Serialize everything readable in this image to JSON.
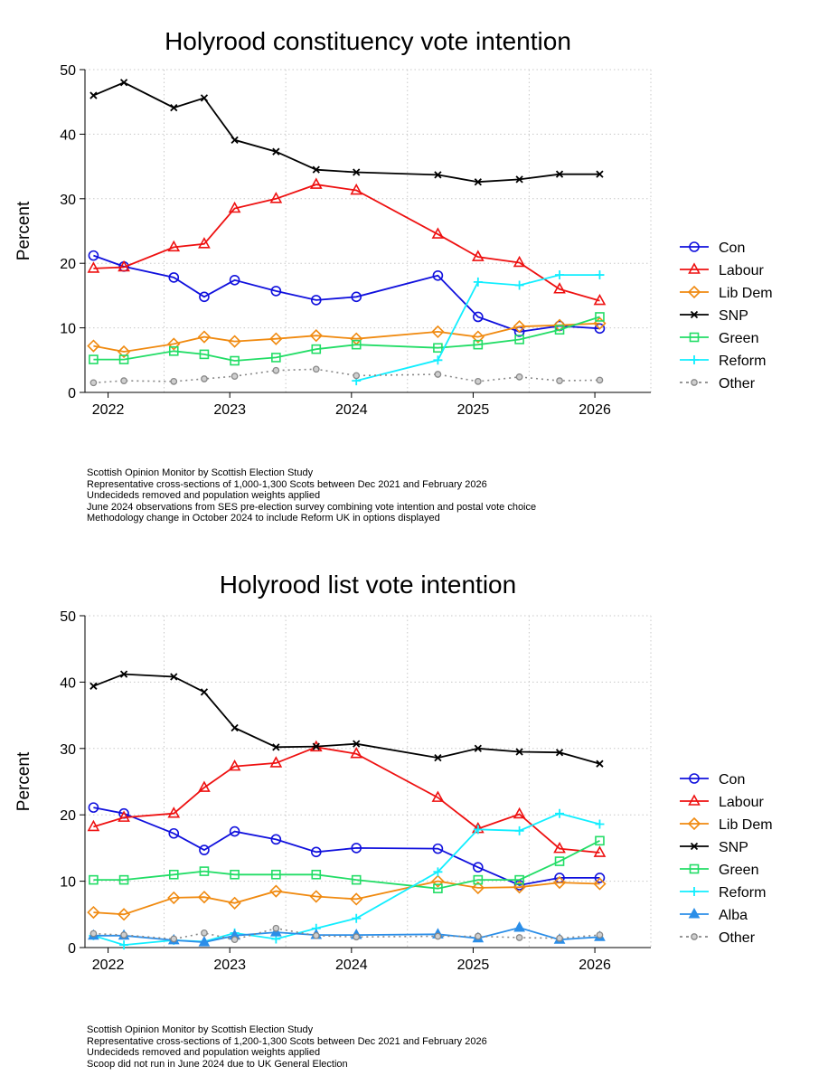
{
  "chart_data": [
    {
      "type": "line",
      "title": "Holyrood constituency vote intention",
      "ylabel": "Percent",
      "xlabel": "",
      "ylim": [
        0,
        50
      ],
      "xlim": [
        2021.85,
        2026.5
      ],
      "yticks": [
        0,
        10,
        20,
        30,
        40,
        50
      ],
      "xticks": [
        "2022",
        "2023",
        "2024",
        "2025",
        "2026"
      ],
      "grid": true,
      "legend_position": "right",
      "notes": [
        "Scottish Opinion Monitor by Scottish Election Study",
        "Representative cross-sections of 1,000-1,300 Scots between Dec 2021 and February 2026",
        "Undecideds removed and population weights applied",
        "June 2024 observations from SES pre-election survey combining vote intention and postal vote choice",
        "Methodology change in October 2024 to include Reform UK in options displayed"
      ],
      "series": [
        {
          "name": "Con",
          "color": "#1010dd",
          "marker": "circle",
          "dash": false,
          "x": [
            2021.92,
            2022.17,
            2022.58,
            2022.83,
            2023.08,
            2023.42,
            2023.75,
            2024.08,
            2024.75,
            2025.08,
            2025.42,
            2025.75,
            2026.08
          ],
          "y": [
            21.2,
            19.5,
            17.8,
            14.8,
            17.4,
            15.7,
            14.3,
            14.8,
            18.1,
            11.7,
            9.4,
            10.3,
            9.9
          ]
        },
        {
          "name": "Labour",
          "color": "#ee1111",
          "marker": "triangle",
          "dash": false,
          "x": [
            2021.92,
            2022.17,
            2022.58,
            2022.83,
            2023.08,
            2023.42,
            2023.75,
            2024.08,
            2024.75,
            2025.08,
            2025.42,
            2025.75,
            2026.08
          ],
          "y": [
            19.2,
            19.4,
            22.5,
            23.0,
            28.5,
            30.0,
            32.2,
            31.3,
            24.5,
            21.0,
            20.1,
            16.0,
            14.2
          ]
        },
        {
          "name": "Lib Dem",
          "color": "#f08a10",
          "marker": "diamond",
          "dash": false,
          "x": [
            2021.92,
            2022.17,
            2022.58,
            2022.83,
            2023.08,
            2023.42,
            2023.75,
            2024.08,
            2024.75,
            2025.08,
            2025.42,
            2025.75,
            2026.08
          ],
          "y": [
            7.2,
            6.3,
            7.5,
            8.6,
            7.9,
            8.3,
            8.8,
            8.3,
            9.4,
            8.6,
            10.2,
            10.4,
            10.7
          ]
        },
        {
          "name": "SNP",
          "color": "#000000",
          "marker": "x",
          "dash": false,
          "x": [
            2021.92,
            2022.17,
            2022.58,
            2022.83,
            2023.08,
            2023.42,
            2023.75,
            2024.08,
            2024.75,
            2025.08,
            2025.42,
            2025.75,
            2026.08
          ],
          "y": [
            46.0,
            48.0,
            44.1,
            45.6,
            39.1,
            37.3,
            34.5,
            34.1,
            33.7,
            32.6,
            33.0,
            33.8,
            33.8
          ]
        },
        {
          "name": "Green",
          "color": "#22dd66",
          "marker": "square",
          "dash": false,
          "x": [
            2021.92,
            2022.17,
            2022.58,
            2022.83,
            2023.08,
            2023.42,
            2023.75,
            2024.08,
            2024.75,
            2025.08,
            2025.42,
            2025.75,
            2026.08
          ],
          "y": [
            5.1,
            5.1,
            6.4,
            5.9,
            4.9,
            5.4,
            6.7,
            7.4,
            6.9,
            7.4,
            8.2,
            9.7,
            11.7
          ]
        },
        {
          "name": "Reform",
          "color": "#11eeff",
          "marker": "plus",
          "dash": false,
          "x": [
            2024.08,
            2024.75,
            2025.08,
            2025.42,
            2025.75,
            2026.08
          ],
          "y": [
            1.8,
            5.0,
            17.1,
            16.6,
            18.2,
            18.2
          ]
        },
        {
          "name": "Other",
          "color": "#888888",
          "marker": "circle-small",
          "dash": true,
          "x": [
            2021.92,
            2022.17,
            2022.58,
            2022.83,
            2023.08,
            2023.42,
            2023.75,
            2024.08,
            2024.75,
            2025.08,
            2025.42,
            2025.75,
            2026.08
          ],
          "y": [
            1.5,
            1.8,
            1.7,
            2.1,
            2.5,
            3.4,
            3.6,
            2.6,
            2.8,
            1.7,
            2.4,
            1.8,
            1.9
          ]
        }
      ]
    },
    {
      "type": "line",
      "title": "Holyrood list vote intention",
      "ylabel": "Percent",
      "xlabel": "",
      "ylim": [
        0,
        50
      ],
      "xlim": [
        2021.85,
        2026.5
      ],
      "yticks": [
        0,
        10,
        20,
        30,
        40,
        50
      ],
      "xticks": [
        "2022",
        "2023",
        "2024",
        "2025",
        "2026"
      ],
      "grid": true,
      "legend_position": "right",
      "notes": [
        "Scottish Opinion Monitor by Scottish Election Study",
        "Representative cross-sections of 1,200-1,300 Scots between Dec 2021 and February 2026",
        "Undecideds removed and population weights applied",
        "Scoop did not run in June 2024 due to UK General Election"
      ],
      "series": [
        {
          "name": "Con",
          "color": "#1010dd",
          "marker": "circle",
          "dash": false,
          "x": [
            2021.92,
            2022.17,
            2022.58,
            2022.83,
            2023.08,
            2023.42,
            2023.75,
            2024.08,
            2024.75,
            2025.08,
            2025.42,
            2025.75,
            2026.08
          ],
          "y": [
            21.1,
            20.2,
            17.2,
            14.7,
            17.5,
            16.3,
            14.4,
            15.0,
            14.9,
            12.1,
            9.4,
            10.5,
            10.5
          ]
        },
        {
          "name": "Labour",
          "color": "#ee1111",
          "marker": "triangle",
          "dash": false,
          "x": [
            2021.92,
            2022.17,
            2022.58,
            2022.83,
            2023.08,
            2023.42,
            2023.75,
            2024.08,
            2024.75,
            2025.08,
            2025.42,
            2025.75,
            2026.08
          ],
          "y": [
            18.2,
            19.6,
            20.2,
            24.1,
            27.3,
            27.8,
            30.2,
            29.2,
            22.6,
            17.9,
            20.1,
            14.9,
            14.3
          ]
        },
        {
          "name": "Lib Dem",
          "color": "#f08a10",
          "marker": "diamond",
          "dash": false,
          "x": [
            2021.92,
            2022.17,
            2022.58,
            2022.83,
            2023.08,
            2023.42,
            2023.75,
            2024.08,
            2024.75,
            2025.08,
            2025.42,
            2025.75,
            2026.08
          ],
          "y": [
            5.3,
            5.0,
            7.5,
            7.6,
            6.7,
            8.5,
            7.7,
            7.3,
            10.0,
            9.0,
            9.1,
            9.8,
            9.6
          ]
        },
        {
          "name": "SNP",
          "color": "#000000",
          "marker": "x",
          "dash": false,
          "x": [
            2021.92,
            2022.17,
            2022.58,
            2022.83,
            2023.08,
            2023.42,
            2023.75,
            2024.08,
            2024.75,
            2025.08,
            2025.42,
            2025.75,
            2026.08
          ],
          "y": [
            39.4,
            41.2,
            40.8,
            38.5,
            33.1,
            30.2,
            30.3,
            30.7,
            28.6,
            30.0,
            29.5,
            29.4,
            27.7
          ]
        },
        {
          "name": "Green",
          "color": "#22dd66",
          "marker": "square",
          "dash": false,
          "x": [
            2021.92,
            2022.17,
            2022.58,
            2022.83,
            2023.08,
            2023.42,
            2023.75,
            2024.08,
            2024.75,
            2025.08,
            2025.42,
            2025.75,
            2026.08
          ],
          "y": [
            10.2,
            10.2,
            11.0,
            11.5,
            11.0,
            11.0,
            11.0,
            10.2,
            8.9,
            10.2,
            10.2,
            13.0,
            16.1
          ]
        },
        {
          "name": "Reform",
          "color": "#11eeff",
          "marker": "plus",
          "dash": false,
          "x": [
            2021.92,
            2022.17,
            2022.58,
            2022.83,
            2023.08,
            2023.42,
            2023.75,
            2024.08,
            2024.75,
            2025.08,
            2025.42,
            2025.75,
            2026.08
          ],
          "y": [
            1.8,
            0.4,
            1.1,
            0.9,
            2.2,
            1.3,
            2.9,
            4.4,
            11.4,
            17.8,
            17.6,
            20.2,
            18.6
          ]
        },
        {
          "name": "Alba",
          "color": "#2b8ee8",
          "marker": "triangle-filled",
          "dash": false,
          "x": [
            2021.92,
            2022.17,
            2022.58,
            2022.83,
            2023.08,
            2023.42,
            2023.75,
            2024.08,
            2024.75,
            2025.08,
            2025.42,
            2025.75,
            2026.08
          ],
          "y": [
            1.8,
            1.8,
            1.1,
            0.8,
            1.8,
            2.3,
            1.9,
            1.9,
            2.0,
            1.4,
            3.0,
            1.2,
            1.6
          ]
        },
        {
          "name": "Other",
          "color": "#888888",
          "marker": "circle-small",
          "dash": true,
          "x": [
            2021.92,
            2022.17,
            2022.58,
            2022.83,
            2023.08,
            2023.42,
            2023.75,
            2024.08,
            2024.75,
            2025.08,
            2025.42,
            2025.75,
            2026.08
          ],
          "y": [
            2.1,
            1.9,
            1.3,
            2.2,
            1.2,
            2.9,
            1.8,
            1.6,
            1.7,
            1.7,
            1.5,
            1.4,
            1.9
          ]
        }
      ]
    }
  ]
}
